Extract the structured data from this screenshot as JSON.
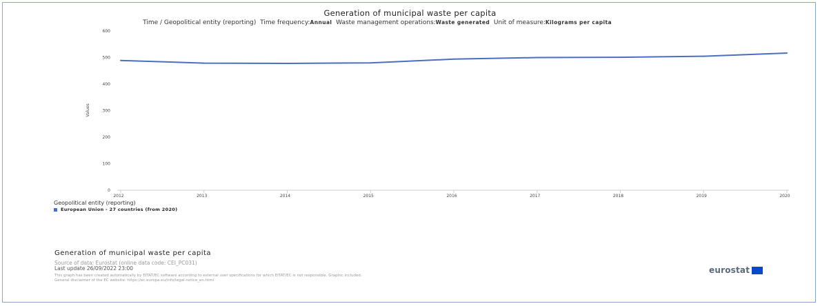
{
  "chart_data": {
    "type": "line",
    "title": "Generation of municipal waste per capita",
    "subtitle": {
      "dim1": "Time / Geopolitical entity (reporting)",
      "label2": "Time frequency:",
      "value2": "Annual",
      "label3": "Waste management operations:",
      "value3": "Waste generated",
      "label4": "Unit of measure:",
      "value4": "Kilograms per capita"
    },
    "xlabel": "",
    "ylabel": "Values",
    "x": [
      "2012",
      "2013",
      "2014",
      "2015",
      "2016",
      "2017",
      "2018",
      "2019",
      "2020"
    ],
    "y_ticks": [
      "0",
      "100",
      "200",
      "300",
      "400",
      "500",
      "600"
    ],
    "ylim": [
      0,
      600
    ],
    "grid": false,
    "series": [
      {
        "name": "European Union - 27 countries (from 2020)",
        "values": [
          489,
          479,
          478,
          480,
          494,
          500,
          501,
          505,
          517
        ]
      }
    ],
    "legend_title": "Geopolitical entity (reporting)",
    "legend_placement": "bottom-left"
  },
  "colors": {
    "series": "#4a6ec2",
    "axis": "#cccccc",
    "frame": "#8aa7c6"
  },
  "footer": {
    "title": "Generation of municipal waste per capita",
    "source": "Source of data: Eurostat (online data code: CEI_PC031)",
    "last_update": "Last update 26/09/2022 23:00",
    "disclaimer_1": "This graph has been created automatically by EITAT/EC software according to external user specifications for which EITAT/EC is not responsible. Graphic included.",
    "disclaimer_2": "General disclaimer of the EC website: https://ec.europa.eu/info/legal-notice_en.html"
  },
  "logo": {
    "text": "eurostat",
    "icon": "eu-flag-icon"
  }
}
